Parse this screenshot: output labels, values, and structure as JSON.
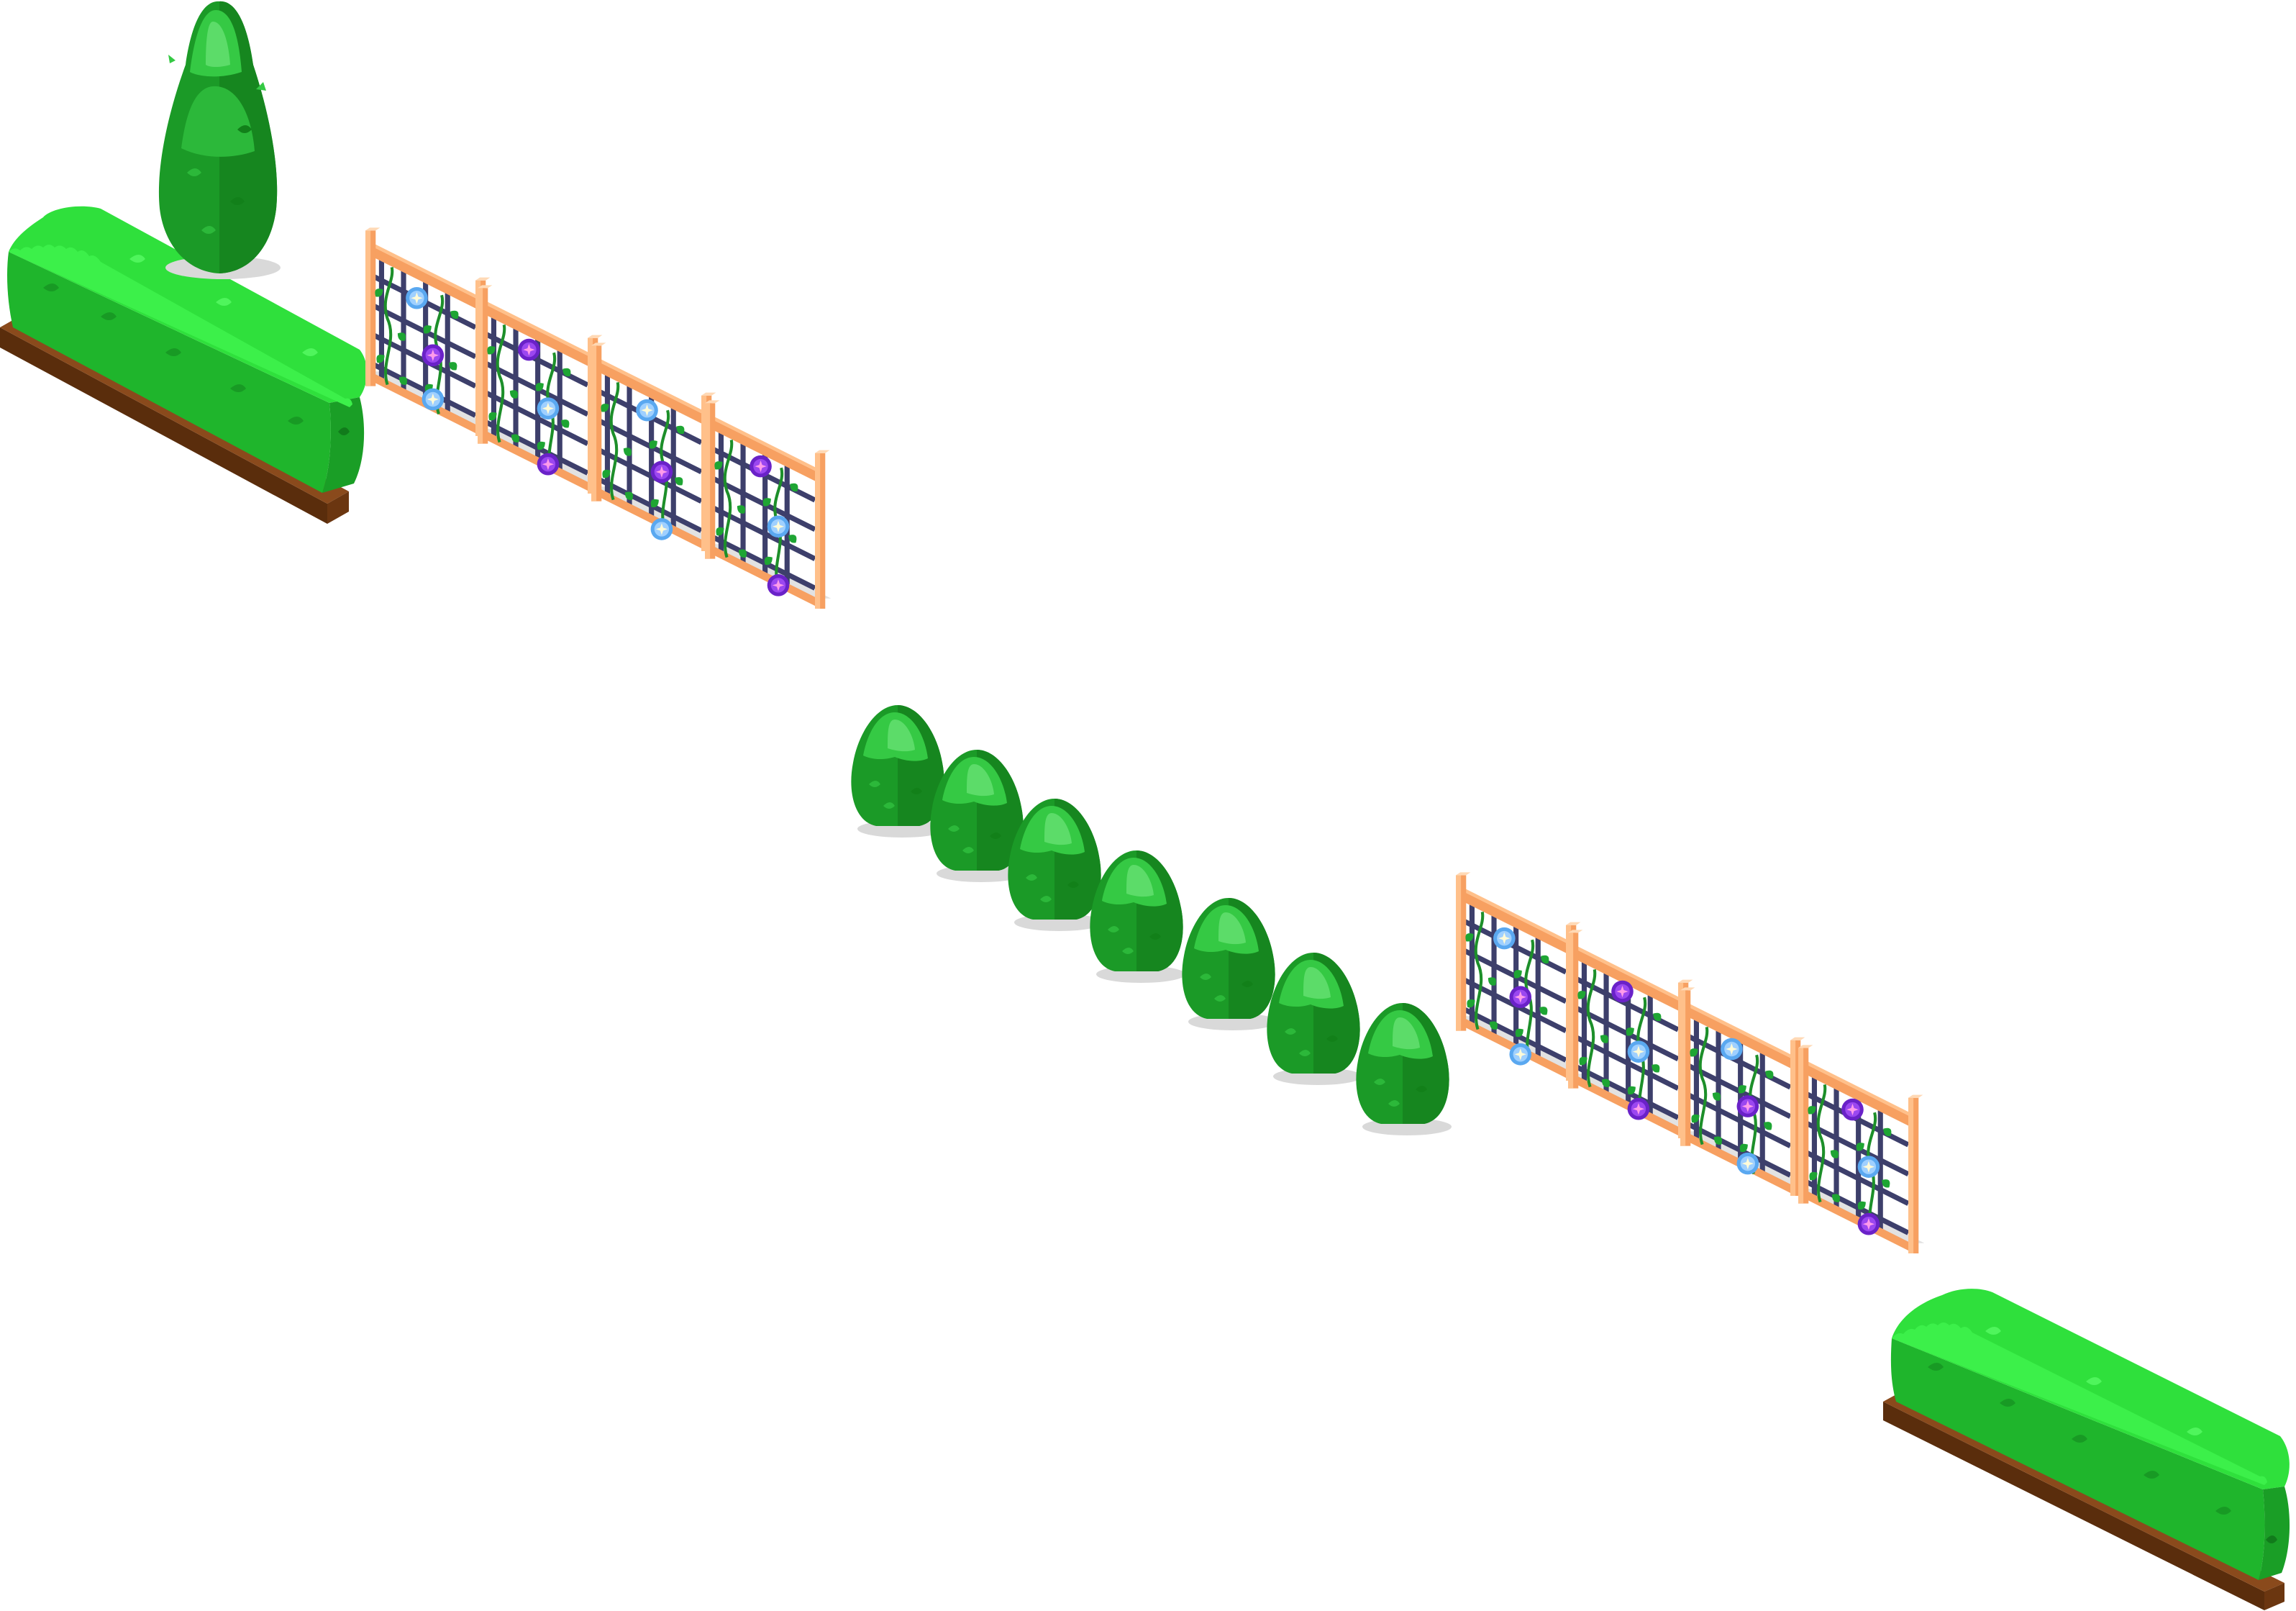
{
  "scene": {
    "kind": "isometric garden border tileset",
    "background": "#ffffff"
  },
  "palette": {
    "hedge_top": "#2fe03c",
    "hedge_side": "#1fb52c",
    "hedge_dark": "#138a1f",
    "hedge_leaf": "#3cf04a",
    "soil_light": "#8a4a1c",
    "soil_dark": "#5a2d0c",
    "shrub_light": "#35c944",
    "shrub_mid": "#23a831",
    "shrub_dark": "#16861f",
    "wood_light": "#ffc08a",
    "wood_mid": "#f7a061",
    "wood_dark": "#e07e3b",
    "lattice": "#3d3f6b",
    "vine": "#1d8f2a",
    "vine_leaf": "#1ea533",
    "flower_blue": "#5aa8f0",
    "flower_blue_center": "#e9f6ff",
    "flower_purple": "#7a2fe0",
    "flower_purple_center": "#ff7be3",
    "shadow": "#d9d9d9"
  },
  "objects": [
    {
      "type": "cypress",
      "name": "tall-cypress-tree"
    },
    {
      "type": "hedge",
      "name": "hedge-left"
    },
    {
      "type": "trellis",
      "name": "trellis-1",
      "flowers": [
        "blue",
        "purple",
        "blue"
      ]
    },
    {
      "type": "trellis",
      "name": "trellis-2",
      "flowers": [
        "purple",
        "blue",
        "purple"
      ]
    },
    {
      "type": "trellis",
      "name": "trellis-3",
      "flowers": [
        "blue",
        "purple",
        "blue"
      ]
    },
    {
      "type": "trellis",
      "name": "trellis-4",
      "flowers": [
        "purple",
        "blue",
        "purple"
      ]
    },
    {
      "type": "shrub",
      "name": "shrub-1"
    },
    {
      "type": "shrub",
      "name": "shrub-2"
    },
    {
      "type": "shrub",
      "name": "shrub-3"
    },
    {
      "type": "shrub",
      "name": "shrub-4"
    },
    {
      "type": "shrub",
      "name": "shrub-5"
    },
    {
      "type": "shrub",
      "name": "shrub-6"
    },
    {
      "type": "shrub",
      "name": "shrub-7"
    },
    {
      "type": "trellis",
      "name": "trellis-5",
      "flowers": [
        "blue",
        "purple",
        "blue"
      ]
    },
    {
      "type": "trellis",
      "name": "trellis-6",
      "flowers": [
        "purple",
        "blue",
        "purple"
      ]
    },
    {
      "type": "trellis",
      "name": "trellis-7",
      "flowers": [
        "blue",
        "purple",
        "blue"
      ]
    },
    {
      "type": "trellis",
      "name": "trellis-8",
      "flowers": [
        "purple",
        "blue",
        "purple"
      ]
    },
    {
      "type": "hedge",
      "name": "hedge-right"
    }
  ]
}
